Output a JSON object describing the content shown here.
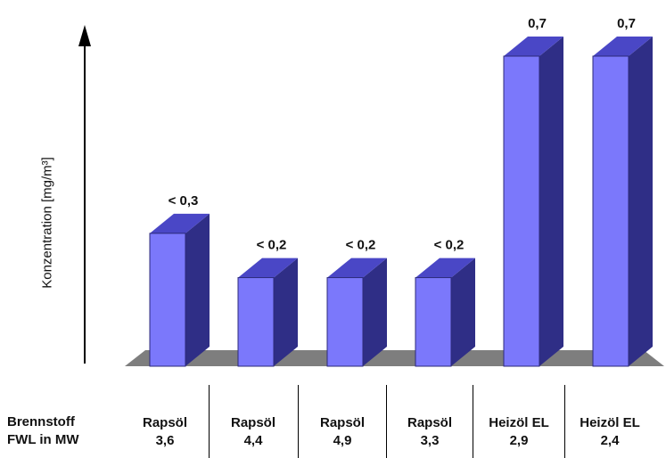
{
  "chart_data": {
    "type": "bar",
    "ylabel": "Konzentration [mg/m³]",
    "row_labels": [
      "Brennstoff",
      "FWL in MW"
    ],
    "categories": [
      {
        "fuel": "Rapsöl",
        "fwl": "3,6"
      },
      {
        "fuel": "Rapsöl",
        "fwl": "4,4"
      },
      {
        "fuel": "Rapsöl",
        "fwl": "4,9"
      },
      {
        "fuel": "Rapsöl",
        "fwl": "3,3"
      },
      {
        "fuel": "Heizöl EL",
        "fwl": "2,9"
      },
      {
        "fuel": "Heizöl EL",
        "fwl": "2,4"
      }
    ],
    "values": [
      0.3,
      0.2,
      0.2,
      0.2,
      0.7,
      0.7
    ],
    "labels": [
      "< 0,3",
      "< 0,2",
      "< 0,2",
      "< 0,2",
      "0,7",
      "0,7"
    ],
    "ylim": [
      0,
      0.7
    ],
    "colors": {
      "front": "#7b78fb",
      "top": "#4a47c6",
      "side": "#2f2e86",
      "floor": "#7e7e7e"
    }
  }
}
